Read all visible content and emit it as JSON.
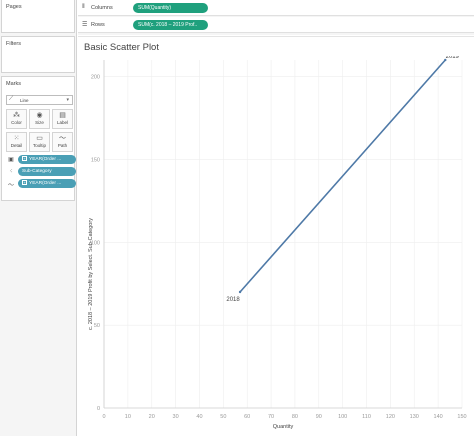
{
  "left_panel": {
    "pages_title": "Pages",
    "filters_title": "Filters",
    "marks_title": "Marks",
    "marks_type": "Line",
    "mark_buttons": [
      {
        "label": "Color",
        "icon": "color-icon"
      },
      {
        "label": "Size",
        "icon": "size-icon"
      },
      {
        "label": "Label",
        "icon": "label-icon"
      },
      {
        "label": "Detail",
        "icon": "detail-icon"
      },
      {
        "label": "Tooltip",
        "icon": "tooltip-icon"
      },
      {
        "label": "Path",
        "icon": "path-icon"
      }
    ],
    "mark_fields": [
      {
        "label": "YEAR(Order ...",
        "icon": "label-mark-icon"
      },
      {
        "label": "Sub-Category",
        "icon": "detail-mark-icon"
      },
      {
        "label": "YEAR(Order ...",
        "icon": "path-mark-icon"
      }
    ]
  },
  "shelves": {
    "columns_label": "Columns",
    "columns_pill": "SUM(Quantity)",
    "rows_label": "Rows",
    "rows_pill": "SUM(c. 2018 – 2019 Prof.."
  },
  "chart_title": "Basic Scatter Plot",
  "chart_data": {
    "type": "line",
    "title": "Basic Scatter Plot",
    "xlabel": "Quantity",
    "ylabel": "c. 2018 – 2019 Profit by Select. Sub-Category",
    "x_ticks": [
      0,
      10,
      20,
      30,
      40,
      50,
      60,
      70,
      80,
      90,
      100,
      110,
      120,
      130,
      140,
      150
    ],
    "y_ticks": [
      0,
      50,
      100,
      150,
      200
    ],
    "xlim": [
      0,
      150
    ],
    "ylim": [
      0,
      210
    ],
    "grid": true,
    "line_color": "#4e79a7",
    "points": [
      {
        "x": 57,
        "y": 70,
        "label": "2018"
      },
      {
        "x": 143,
        "y": 210,
        "label": "2019"
      }
    ]
  }
}
